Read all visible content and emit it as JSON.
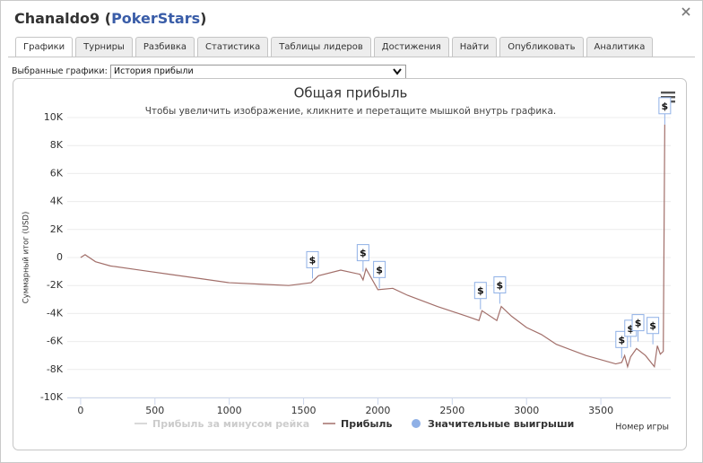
{
  "header": {
    "title_parts": [
      "Chanaldo9 (",
      "PokerStars",
      ")"
    ]
  },
  "tabs": [
    "Графики",
    "Турниры",
    "Разбивка",
    "Статистика",
    "Таблицы лидеров",
    "Достижения",
    "Найти",
    "Опубликовать",
    "Аналитика"
  ],
  "selector": {
    "label": "Выбранные графики:",
    "value": "История прибыли"
  },
  "chart_data": {
    "type": "line",
    "title": "Общая прибыль",
    "subtitle": "Чтобы увеличить изображение, кликните и перетащите мышкой внутрь графика.",
    "y_label": "Суммарный итог (USD)",
    "x_label": "Номер игры",
    "xlim": [
      -90,
      3970
    ],
    "xticks": [
      0,
      500,
      1000,
      1500,
      2000,
      2500,
      3000,
      3500
    ],
    "ylim": [
      -10000,
      10000
    ],
    "yticks": [
      {
        "value": -10000,
        "label": "-10K"
      },
      {
        "value": -8000,
        "label": "-8K"
      },
      {
        "value": -6000,
        "label": "-6K"
      },
      {
        "value": -4000,
        "label": "-4K"
      },
      {
        "value": -2000,
        "label": "-2K"
      },
      0,
      {
        "value": 2000,
        "label": "2K"
      },
      {
        "value": 4000,
        "label": "4K"
      },
      {
        "value": 6000,
        "label": "6K"
      },
      {
        "value": 8000,
        "label": "8K"
      },
      {
        "value": 10000,
        "label": "10K"
      }
    ],
    "grid": true,
    "series": [
      {
        "name": "Прибыль за минусом рейка",
        "color": "#cccccc",
        "visible": false,
        "x": [],
        "values": []
      },
      {
        "name": "Прибыль",
        "color": "#a26f6a",
        "visible": true,
        "x": [
          0,
          30,
          100,
          200,
          400,
          600,
          800,
          1000,
          1200,
          1400,
          1550,
          1600,
          1750,
          1880,
          1900,
          1920,
          2000,
          2100,
          2200,
          2400,
          2600,
          2680,
          2700,
          2800,
          2830,
          2900,
          3000,
          3100,
          3200,
          3400,
          3600,
          3640,
          3660,
          3680,
          3700,
          3740,
          3800,
          3860,
          3880,
          3900,
          3920,
          3930
        ],
        "values": [
          0,
          200,
          -300,
          -600,
          -900,
          -1200,
          -1500,
          -1800,
          -1900,
          -2000,
          -1800,
          -1300,
          -900,
          -1200,
          -1600,
          -800,
          -2300,
          -2200,
          -2700,
          -3500,
          -4200,
          -4500,
          -3800,
          -4500,
          -3500,
          -4200,
          -5000,
          -5500,
          -6200,
          -7000,
          -7600,
          -7500,
          -7000,
          -7800,
          -7100,
          -6500,
          -7000,
          -7800,
          -6300,
          -6900,
          -6700,
          9500
        ]
      },
      {
        "name": "Значительные выигрыши",
        "color": "#8fb0e6",
        "visible": true,
        "label": "$",
        "x": [
          1560,
          1900,
          2010,
          2690,
          2820,
          3640,
          3700,
          3750,
          3850,
          3930
        ],
        "values": [
          -1500,
          -1000,
          -2200,
          -3700,
          -3300,
          -7200,
          -6400,
          -6000,
          -6200,
          9500
        ]
      }
    ]
  }
}
